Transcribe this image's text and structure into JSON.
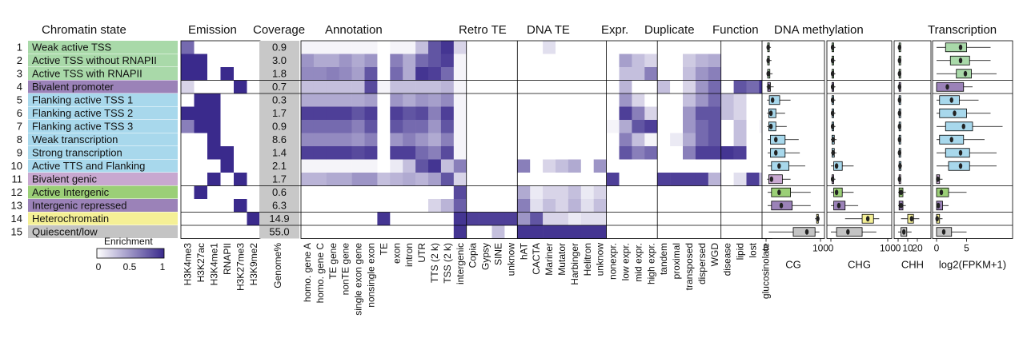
{
  "chart_data": {
    "type": "heatmap",
    "colors": {
      "low": "#ffffff",
      "high": "#3a2a8c",
      "coverage_bg": "#c8c8c8",
      "cell_border": "#000000"
    },
    "headers": {
      "states": "Chromatin state",
      "emission": "Emission",
      "coverage": "Coverage",
      "annotation": "Annotation",
      "retro": "Retro TE",
      "dna": "DNA TE",
      "expr": "Expr.",
      "duplicate": "Duplicate",
      "function": "Function",
      "methylation": "DNA methylation",
      "transcription": "Transcription"
    },
    "states": [
      {
        "num": "1",
        "name": "Weak active TSS",
        "color": "#a9d9a9",
        "coverage": "0.9"
      },
      {
        "num": "2",
        "name": "Active TSS without RNAPII",
        "color": "#a9d9a9",
        "coverage": "3.0"
      },
      {
        "num": "3",
        "name": "Active TSS with RNAPII",
        "color": "#a9d9a9",
        "coverage": "1.8"
      },
      {
        "num": "4",
        "name": "Bivalent promoter",
        "color": "#9b82b8",
        "coverage": "0.7"
      },
      {
        "num": "5",
        "name": "Flanking active TSS 1",
        "color": "#a8d8ec",
        "coverage": "0.3"
      },
      {
        "num": "6",
        "name": "Flanking active TSS 2",
        "color": "#a8d8ec",
        "coverage": "1.7"
      },
      {
        "num": "7",
        "name": "Flanking active TSS 3",
        "color": "#a8d8ec",
        "coverage": "0.9"
      },
      {
        "num": "8",
        "name": "Weak transcription",
        "color": "#a8d8ec",
        "coverage": "8.6"
      },
      {
        "num": "9",
        "name": "Strong transcription",
        "color": "#a8d8ec",
        "coverage": "1.4"
      },
      {
        "num": "10",
        "name": "Active TTS and Flanking",
        "color": "#a8d8ec",
        "coverage": "2.1"
      },
      {
        "num": "11",
        "name": "Bivalent genic",
        "color": "#c8a8d0",
        "coverage": "1.7"
      },
      {
        "num": "12",
        "name": "Active Intergenic",
        "color": "#9bcf77",
        "coverage": "0.6"
      },
      {
        "num": "13",
        "name": "Intergenic repressed",
        "color": "#9b82b8",
        "coverage": "6.3"
      },
      {
        "num": "14",
        "name": "Heterochromatin",
        "color": "#f5f096",
        "coverage": "14.9"
      },
      {
        "num": "15",
        "name": "Quiescent/low",
        "color": "#c4c4c4",
        "coverage": "55.0"
      }
    ],
    "emission": {
      "columns": [
        "H3K4me3",
        "H3K27ac",
        "H3K4me1",
        "RNAPII",
        "H3K27me3",
        "H3K9me2"
      ],
      "values": [
        [
          0.7,
          0,
          0,
          0,
          0,
          0
        ],
        [
          1,
          1,
          0,
          0,
          0,
          0
        ],
        [
          1,
          1,
          0,
          1,
          0,
          0
        ],
        [
          0.2,
          0,
          0,
          0,
          1,
          0
        ],
        [
          0,
          1,
          1,
          0,
          0,
          0
        ],
        [
          1,
          1,
          1,
          0,
          0,
          0
        ],
        [
          0.6,
          1,
          1,
          0,
          0,
          0
        ],
        [
          0,
          0,
          1,
          0,
          0,
          0
        ],
        [
          0,
          0,
          1,
          1,
          0,
          0
        ],
        [
          0,
          0,
          0,
          1,
          0,
          0
        ],
        [
          0,
          0,
          1,
          0,
          1,
          0
        ],
        [
          0,
          1,
          0,
          0,
          0,
          0
        ],
        [
          0,
          0,
          0,
          0,
          1,
          0
        ],
        [
          0,
          0,
          0,
          0,
          0,
          1
        ],
        [
          0,
          0,
          0,
          0,
          0,
          0
        ]
      ]
    },
    "coverage_label": "Genome%",
    "annotation_columns": [
      "homo. gene A",
      "homo. gene C",
      "TE gene",
      "nonTE gene",
      "single exon gene",
      "nonsingle exon",
      "TE",
      "exon",
      "intron",
      "UTR",
      "TTS (2 k)",
      "TSS (2 k)",
      "intergenic",
      "Copia",
      "Gypsy",
      "SINE",
      "unknow",
      "hAT",
      "CACTA",
      "Mariner",
      "Mutator",
      "Harbinger",
      "Helitron",
      "unknow",
      "nonexpr.",
      "low expr.",
      "mid expr.",
      "high expr.",
      "tandem",
      "proximal",
      "transposed",
      "dispersed",
      "WGD",
      "disease",
      "lipid",
      "lost",
      "glucosinolate"
    ],
    "annotation_values": [
      [
        0.05,
        0.05,
        0.05,
        0.05,
        0.05,
        0.05,
        0,
        0.05,
        0.05,
        0.3,
        0.8,
        0.95,
        0.2,
        0,
        0,
        0,
        0,
        0,
        0,
        0.15,
        0,
        0,
        0,
        0,
        0,
        0,
        0,
        0,
        0,
        0,
        0,
        0,
        0,
        0,
        0,
        0,
        0
      ],
      [
        0.5,
        0.4,
        0.4,
        0.5,
        0.4,
        0.5,
        0,
        0.6,
        0.4,
        0.7,
        0.8,
        0.9,
        0.05,
        0,
        0,
        0,
        0,
        0,
        0,
        0,
        0,
        0,
        0,
        0,
        0,
        0.45,
        0.3,
        0.2,
        0,
        0,
        0.25,
        0.35,
        0.4,
        0,
        0,
        0,
        0
      ],
      [
        0.55,
        0.55,
        0.6,
        0.55,
        0.45,
        0.8,
        0,
        0.7,
        0.4,
        0.95,
        0.9,
        0.7,
        0.05,
        0,
        0,
        0,
        0,
        0,
        0,
        0,
        0,
        0,
        0,
        0,
        0,
        0.3,
        0.3,
        0.6,
        0,
        0,
        0.3,
        0.5,
        0.6,
        0,
        0,
        0,
        0
      ],
      [
        0.3,
        0.3,
        0.3,
        0.3,
        0.3,
        0.85,
        0.05,
        0.3,
        0.3,
        0.3,
        0.3,
        0.35,
        0.05,
        0,
        0,
        0,
        0,
        0,
        0,
        0,
        0,
        0,
        0,
        0,
        0,
        0.35,
        0,
        0,
        0.3,
        0,
        0.2,
        0.5,
        0.7,
        0,
        0.8,
        0.7,
        0.95
      ],
      [
        0.4,
        0.4,
        0.4,
        0.4,
        0.4,
        0.45,
        0,
        0.5,
        0.4,
        0.5,
        0.45,
        0.55,
        0.05,
        0,
        0,
        0,
        0,
        0,
        0,
        0,
        0,
        0,
        0,
        0,
        0,
        0.5,
        0.2,
        0,
        0,
        0,
        0.3,
        0.5,
        0.7,
        0.3,
        0.2,
        0,
        0
      ],
      [
        0.9,
        0.9,
        0.9,
        0.9,
        0.8,
        0.9,
        0,
        0.9,
        0.8,
        0.85,
        0.6,
        0.9,
        0.05,
        0,
        0,
        0,
        0,
        0,
        0,
        0,
        0,
        0,
        0,
        0,
        0,
        0.9,
        0.6,
        0.2,
        0,
        0,
        0.5,
        0.8,
        0.8,
        0.3,
        0.2,
        0,
        0
      ],
      [
        0.7,
        0.7,
        0.7,
        0.7,
        0.6,
        0.8,
        0,
        0.8,
        0.7,
        0.7,
        0.5,
        0.8,
        0.05,
        0,
        0,
        0,
        0,
        0,
        0,
        0,
        0,
        0,
        0,
        0,
        0.05,
        0.4,
        0.8,
        0.9,
        0,
        0,
        0.5,
        0.7,
        0.8,
        0,
        0.3,
        0,
        0.05
      ],
      [
        0.55,
        0.55,
        0.55,
        0.55,
        0.5,
        0.6,
        0,
        0.5,
        0.6,
        0.5,
        0.4,
        0.6,
        0.05,
        0,
        0,
        0,
        0,
        0,
        0,
        0,
        0,
        0,
        0,
        0,
        0,
        0.6,
        0.3,
        0.05,
        0,
        0.1,
        0.4,
        0.7,
        0.8,
        0,
        0.3,
        0,
        0
      ],
      [
        0.9,
        0.9,
        0.9,
        0.9,
        0.85,
        0.9,
        0,
        0.9,
        0.9,
        0.7,
        0.6,
        0.85,
        0.05,
        0,
        0,
        0,
        0,
        0,
        0,
        0,
        0,
        0,
        0,
        0,
        0,
        0.8,
        0.6,
        0.7,
        0,
        0,
        0.6,
        0.9,
        0.9,
        0.95,
        0.9,
        0,
        0
      ],
      [
        0.05,
        0.05,
        0.05,
        0.05,
        0.05,
        0.05,
        0,
        0.1,
        0.3,
        0.8,
        0.95,
        0.3,
        0.6,
        0,
        0,
        0,
        0,
        0.6,
        0,
        0.2,
        0.3,
        0.4,
        0,
        0.5,
        0,
        0,
        0,
        0,
        0,
        0,
        0,
        0,
        0,
        0,
        0,
        0,
        0
      ],
      [
        0.35,
        0.35,
        0.4,
        0.4,
        0.5,
        0.5,
        0.3,
        0.35,
        0.4,
        0.35,
        0.45,
        0.8,
        0.2,
        0,
        0,
        0,
        0,
        0,
        0,
        0,
        0,
        0,
        0,
        0,
        0.9,
        0,
        0,
        0,
        0.9,
        0.9,
        0.9,
        0.9,
        0.35,
        0,
        0.15,
        0.9,
        0.3
      ],
      [
        0,
        0,
        0,
        0,
        0,
        0,
        0,
        0,
        0,
        0,
        0,
        0,
        0.85,
        0,
        0,
        0,
        0,
        0.4,
        0.1,
        0.2,
        0.2,
        0.3,
        0.1,
        0.2,
        0,
        0,
        0,
        0,
        0,
        0,
        0,
        0,
        0,
        0,
        0,
        0,
        0
      ],
      [
        0,
        0,
        0,
        0,
        0,
        0,
        0,
        0,
        0,
        0,
        0.2,
        0.35,
        0.75,
        0,
        0,
        0,
        0,
        0.6,
        0.15,
        0.3,
        0.2,
        0.35,
        0.15,
        0.3,
        0,
        0,
        0,
        0,
        0,
        0,
        0,
        0,
        0,
        0,
        0,
        0,
        0
      ],
      [
        0,
        0,
        0,
        0,
        0,
        0,
        0.95,
        0,
        0,
        0,
        0,
        0,
        0.95,
        0.9,
        0.9,
        0.9,
        0.9,
        0.5,
        0.8,
        0.2,
        0.2,
        0.1,
        0.15,
        0.15,
        0,
        0,
        0,
        0,
        0,
        0,
        0,
        0,
        0,
        0,
        0,
        0,
        0
      ],
      [
        0,
        0,
        0,
        0,
        0,
        0,
        0,
        0,
        0,
        0,
        0,
        0,
        0.95,
        0,
        0,
        0.3,
        0,
        0.95,
        0.95,
        0.95,
        0.95,
        0.95,
        0.95,
        0.95,
        0,
        0,
        0,
        0,
        0,
        0,
        0,
        0,
        0,
        0,
        0,
        0,
        0
      ]
    ],
    "legend": {
      "title": "Enrichment",
      "ticks": [
        "0",
        "0.5",
        "1"
      ]
    },
    "boxplots": [
      {
        "key": "cg",
        "xlabel": "CG",
        "xlim": [
          0,
          100
        ],
        "ticks": [
          "0",
          "100"
        ],
        "boxes": [
          [
            1,
            3,
            4,
            6,
            9
          ],
          [
            1,
            3,
            4,
            6,
            10
          ],
          [
            1,
            3,
            4,
            7,
            12
          ],
          [
            1,
            3,
            5,
            8,
            14
          ],
          [
            2,
            6,
            12,
            25,
            45
          ],
          [
            2,
            5,
            9,
            18,
            35
          ],
          [
            2,
            5,
            9,
            18,
            38
          ],
          [
            3,
            8,
            18,
            35,
            60
          ],
          [
            3,
            8,
            18,
            35,
            62
          ],
          [
            3,
            10,
            24,
            42,
            72
          ],
          [
            2,
            5,
            10,
            30,
            45
          ],
          [
            3,
            10,
            24,
            45,
            82
          ],
          [
            3,
            10,
            28,
            48,
            82
          ],
          [
            90,
            93,
            95,
            96,
            97
          ],
          [
            5,
            50,
            75,
            90,
            98
          ]
        ]
      },
      {
        "key": "chg",
        "xlabel": "CHG",
        "xlim": [
          0,
          100
        ],
        "ticks": [
          "0",
          "100"
        ],
        "boxes": [
          [
            0,
            2,
            3,
            5,
            8
          ],
          [
            0,
            2,
            3,
            5,
            8
          ],
          [
            0,
            2,
            3,
            5,
            8
          ],
          [
            0,
            2,
            3,
            5,
            8
          ],
          [
            0,
            2,
            3,
            5,
            8
          ],
          [
            0,
            2,
            3,
            5,
            8
          ],
          [
            0,
            2,
            3,
            5,
            8
          ],
          [
            0,
            2,
            4,
            6,
            10
          ],
          [
            0,
            2,
            4,
            6,
            10
          ],
          [
            0,
            5,
            10,
            20,
            40
          ],
          [
            0,
            2,
            3,
            5,
            8
          ],
          [
            0,
            5,
            10,
            20,
            40
          ],
          [
            0,
            5,
            14,
            25,
            48
          ],
          [
            25,
            55,
            65,
            75,
            85
          ],
          [
            0,
            10,
            30,
            55,
            80
          ]
        ]
      },
      {
        "key": "chh",
        "xlabel": "CHH",
        "xlim": [
          0,
          30
        ],
        "ticks": [
          "0",
          "10",
          "20"
        ],
        "boxes": [
          [
            0,
            1,
            1.5,
            2,
            3
          ],
          [
            0,
            1,
            1.5,
            2,
            3
          ],
          [
            0,
            1,
            1.5,
            2,
            3
          ],
          [
            0,
            1,
            1.5,
            2,
            3
          ],
          [
            0,
            1,
            1.5,
            2,
            3
          ],
          [
            0,
            1,
            1.5,
            2,
            3
          ],
          [
            0,
            1,
            1.5,
            2,
            3
          ],
          [
            0,
            1,
            1.5,
            2,
            3
          ],
          [
            0,
            1,
            1.5,
            2,
            3
          ],
          [
            0,
            1,
            2,
            3,
            4
          ],
          [
            0,
            1,
            1.5,
            2,
            3
          ],
          [
            0,
            1,
            3,
            5,
            8
          ],
          [
            0,
            1,
            3,
            5,
            8
          ],
          [
            3,
            10,
            14,
            16,
            22
          ],
          [
            0,
            3,
            6,
            9,
            14
          ]
        ]
      },
      {
        "key": "tx",
        "xlabel": "log2(FPKM+1)",
        "xlim": [
          0,
          12
        ],
        "ticks": [
          "0",
          "5"
        ],
        "boxes": [
          [
            0,
            1.5,
            4,
            5,
            9
          ],
          [
            0,
            2.3,
            4,
            5.5,
            9
          ],
          [
            0,
            3.3,
            4.8,
            5.8,
            10
          ],
          [
            0,
            0,
            1.8,
            4.5,
            6
          ],
          [
            0,
            0.5,
            2.5,
            3.8,
            7
          ],
          [
            0,
            0.5,
            3,
            5,
            9
          ],
          [
            0,
            1.5,
            4.5,
            6,
            11
          ],
          [
            0,
            0.5,
            2.5,
            4.5,
            8
          ],
          [
            0,
            1.5,
            4,
            5.5,
            10
          ],
          [
            0,
            2,
            4,
            5.5,
            10
          ],
          [
            0,
            0,
            0.2,
            0.5,
            1
          ],
          [
            0,
            0,
            0.8,
            2,
            5
          ],
          [
            0,
            0,
            0.3,
            1,
            2
          ],
          [
            0,
            0,
            0.1,
            0.5,
            1
          ],
          [
            0,
            0,
            1.2,
            2.5,
            5
          ]
        ]
      }
    ]
  }
}
